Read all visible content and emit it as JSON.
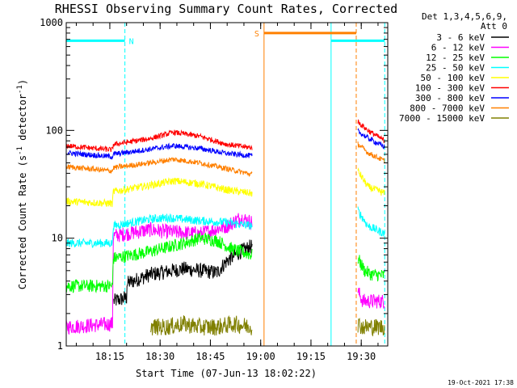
{
  "chart_data": {
    "type": "line",
    "title": "RHESSI Observing Summary Count Rates, Corrected",
    "xlabel": "Start Time (07-Jun-13 18:02:22)",
    "ylabel_main": "Corrected Count Rate (s",
    "ylabel_sup1": "-1",
    "ylabel_mid": " detector",
    "ylabel_sup2": "-1",
    "ylabel_end": ")",
    "x_range_min": [
      0,
      81
    ],
    "y_scale": "log",
    "ylim": [
      1,
      1000
    ],
    "x_ticks": [
      {
        "t": 13,
        "label": "18:15"
      },
      {
        "t": 28,
        "label": "18:30"
      },
      {
        "t": 43,
        "label": "18:45"
      },
      {
        "t": 58,
        "label": "19:00"
      },
      {
        "t": 73,
        "label": "19:15"
      },
      {
        "t": 88,
        "label": "19:30"
      }
    ],
    "y_ticks": [
      {
        "v": 1,
        "label": "1"
      },
      {
        "v": 10,
        "label": "10"
      },
      {
        "v": 100,
        "label": "100"
      },
      {
        "v": 1000,
        "label": "1000"
      }
    ],
    "legend_header": [
      "Det 1,3,4,5,6,9,",
      "Att 0"
    ],
    "legend_placement": "right",
    "segments": [
      [
        0,
        55.5
      ],
      [
        87,
        95
      ]
    ],
    "series": [
      {
        "name": "3 - 6 keV",
        "color": "#000000",
        "noise": 0.07,
        "profile": [
          [
            0,
            null
          ],
          [
            14,
            null
          ],
          [
            14.1,
            2.6
          ],
          [
            18,
            2.8
          ],
          [
            18.1,
            3.8
          ],
          [
            25,
            4.6
          ],
          [
            35,
            5.2
          ],
          [
            40,
            5.0
          ],
          [
            45,
            4.8
          ],
          [
            48,
            6.2
          ],
          [
            52,
            7.5
          ],
          [
            55.5,
            8.5
          ],
          [
            87,
            null
          ],
          [
            95,
            null
          ]
        ]
      },
      {
        "name": "6 - 12 keV",
        "color": "#ff00ff",
        "noise": 0.07,
        "profile": [
          [
            0,
            1.5
          ],
          [
            13.8,
            1.6
          ],
          [
            14,
            10.5
          ],
          [
            25,
            12.0
          ],
          [
            30,
            11.5
          ],
          [
            40,
            11.0
          ],
          [
            48,
            13.0
          ],
          [
            52,
            15.5
          ],
          [
            55.5,
            14.0
          ],
          [
            87,
            3.2
          ],
          [
            88.5,
            2.6
          ],
          [
            95,
            2.6
          ]
        ]
      },
      {
        "name": "12 - 25 keV",
        "color": "#00ff00",
        "noise": 0.06,
        "profile": [
          [
            0,
            3.6
          ],
          [
            13.8,
            3.6
          ],
          [
            14,
            6.5
          ],
          [
            25,
            7.5
          ],
          [
            35,
            9.0
          ],
          [
            40,
            10.0
          ],
          [
            45,
            9.5
          ],
          [
            50,
            7.8
          ],
          [
            55.5,
            7.0
          ],
          [
            87,
            6.5
          ],
          [
            89,
            5.0
          ],
          [
            91,
            4.6
          ],
          [
            95,
            4.5
          ]
        ]
      },
      {
        "name": "25 - 50 keV",
        "color": "#00ffff",
        "noise": 0.04,
        "profile": [
          [
            0,
            9.0
          ],
          [
            13.8,
            9.0
          ],
          [
            14,
            13.0
          ],
          [
            25,
            15.0
          ],
          [
            30,
            15.5
          ],
          [
            40,
            14.5
          ],
          [
            48,
            14.0
          ],
          [
            55.5,
            13.0
          ],
          [
            87,
            18.0
          ],
          [
            90,
            13.0
          ],
          [
            95,
            11.0
          ]
        ]
      },
      {
        "name": "50 - 100 keV",
        "color": "#ffff00",
        "noise": 0.035,
        "profile": [
          [
            0,
            22.0
          ],
          [
            13.8,
            21.0
          ],
          [
            14,
            27.0
          ],
          [
            25,
            31.0
          ],
          [
            32,
            34.0
          ],
          [
            40,
            32.0
          ],
          [
            48,
            28.0
          ],
          [
            55.5,
            26.0
          ],
          [
            87,
            42.0
          ],
          [
            90,
            30.0
          ],
          [
            95,
            26.0
          ]
        ]
      },
      {
        "name": "100 - 300 keV",
        "color": "#ff0000",
        "noise": 0.025,
        "profile": [
          [
            0,
            72.0
          ],
          [
            13.8,
            66.0
          ],
          [
            14,
            74.0
          ],
          [
            25,
            84.0
          ],
          [
            32,
            96.0
          ],
          [
            40,
            88.0
          ],
          [
            48,
            74.0
          ],
          [
            55.5,
            69.0
          ],
          [
            87,
            120.0
          ],
          [
            90,
            100.0
          ],
          [
            95,
            80.0
          ]
        ]
      },
      {
        "name": "300 - 800 keV",
        "color": "#0000ff",
        "noise": 0.025,
        "profile": [
          [
            0,
            62.0
          ],
          [
            13.8,
            57.0
          ],
          [
            14,
            60.0
          ],
          [
            25,
            67.0
          ],
          [
            32,
            72.0
          ],
          [
            40,
            68.0
          ],
          [
            48,
            61.0
          ],
          [
            55.5,
            58.0
          ],
          [
            87,
            98.0
          ],
          [
            90,
            85.0
          ],
          [
            95,
            70.0
          ]
        ]
      },
      {
        "name": "800 - 7000 keV",
        "color": "#ff8000",
        "noise": 0.025,
        "profile": [
          [
            0,
            46.0
          ],
          [
            13.8,
            42.0
          ],
          [
            14,
            45.0
          ],
          [
            25,
            50.0
          ],
          [
            32,
            54.0
          ],
          [
            40,
            50.0
          ],
          [
            48,
            44.0
          ],
          [
            55.5,
            39.0
          ],
          [
            87,
            75.0
          ],
          [
            90,
            62.0
          ],
          [
            95,
            52.0
          ]
        ]
      },
      {
        "name": "7000 - 15000 keV",
        "color": "#808000",
        "noise": 0.08,
        "profile": [
          [
            0,
            null
          ],
          [
            25,
            null
          ],
          [
            25.1,
            1.5
          ],
          [
            30,
            1.5
          ],
          [
            35,
            1.6
          ],
          [
            40,
            1.5
          ],
          [
            45,
            1.5
          ],
          [
            50,
            1.6
          ],
          [
            55.5,
            1.5
          ],
          [
            87,
            1.6
          ],
          [
            88.5,
            1.5
          ],
          [
            95,
            1.5
          ]
        ]
      }
    ],
    "observing_bars": [
      {
        "label": "N",
        "t_start": 0,
        "t_end": 17.5,
        "value": 680,
        "color": "#00ffff"
      },
      {
        "label": "S",
        "t_start": 59,
        "t_end": 86.5,
        "value": 800,
        "color": "#ff8000"
      },
      {
        "label": "",
        "t_start": 79,
        "t_end": 95,
        "value": 680,
        "color": "#00ffff"
      }
    ],
    "markers": [
      {
        "t": 0,
        "color": "#00ffff",
        "dash": false
      },
      {
        "t": 17.5,
        "color": "#00ffff",
        "dash": true
      },
      {
        "t": 59,
        "color": "#ff8000",
        "dash": false
      },
      {
        "t": 79,
        "color": "#00ffff",
        "dash": false
      },
      {
        "t": 86.5,
        "color": "#ff8000",
        "dash": true
      },
      {
        "t": 95,
        "color": "#00ffff",
        "dash": true
      }
    ]
  },
  "footer_date": "19-Oct-2021 17:38"
}
